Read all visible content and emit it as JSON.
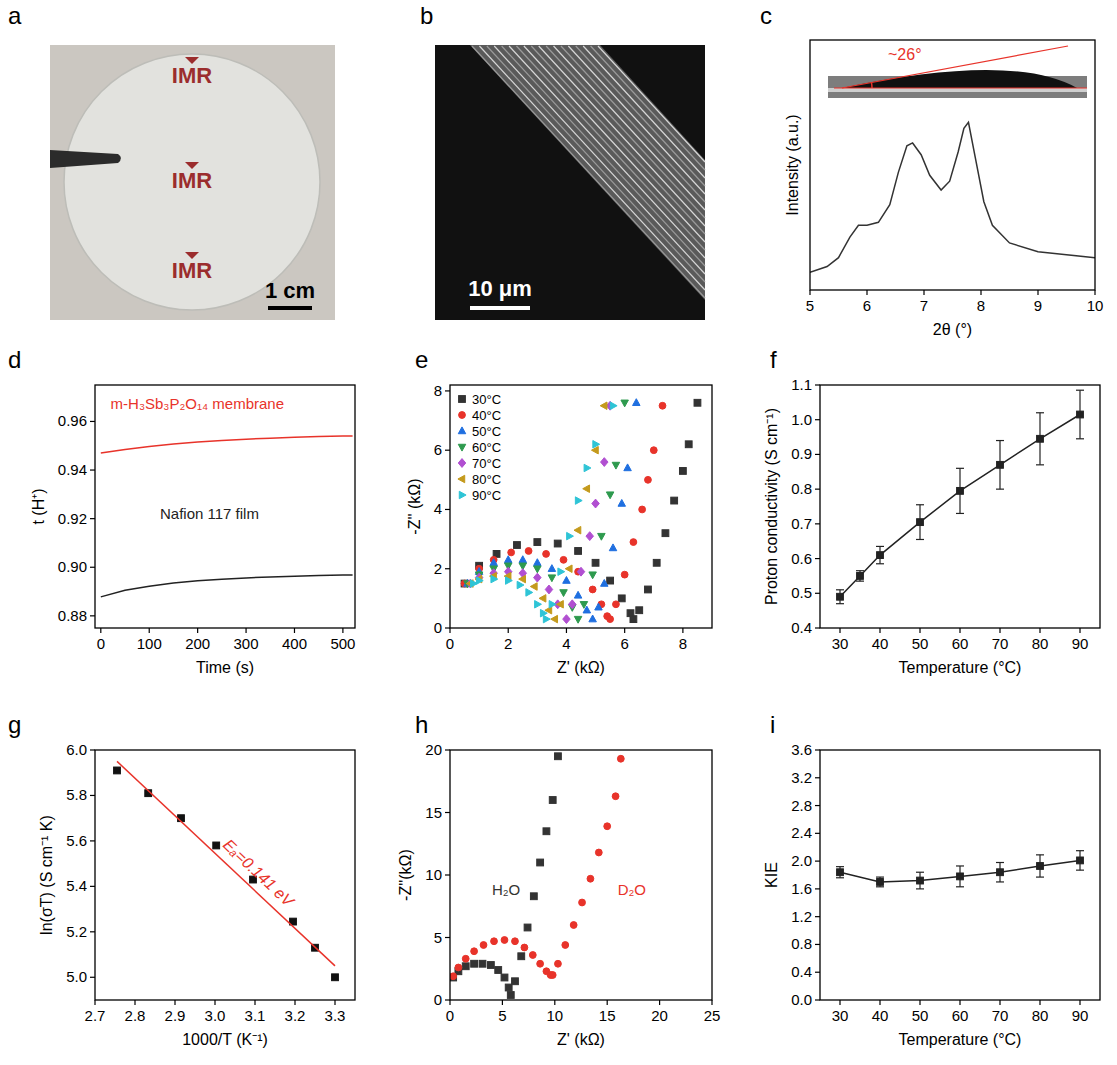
{
  "photos": [
    {
      "panel": "a",
      "labels": [
        "IMR",
        "IMR",
        "IMR"
      ],
      "scale_bar": "1 cm"
    },
    {
      "panel": "b",
      "scale_bar": "10 μm"
    }
  ],
  "chart_data": [
    {
      "panel": "c",
      "type": "line",
      "xlabel": "2θ (°)",
      "ylabel": "Intensity (a.u.)",
      "xlim": [
        5,
        10
      ],
      "xticks": [
        5,
        6,
        7,
        8,
        9,
        10
      ],
      "ylim": [
        0,
        0.85
      ],
      "tick_labels": "x",
      "annotations": [
        "~26°"
      ],
      "x": [
        5.0,
        5.3,
        5.5,
        5.7,
        5.85,
        6.0,
        6.2,
        6.4,
        6.55,
        6.7,
        6.8,
        6.95,
        7.1,
        7.3,
        7.45,
        7.6,
        7.7,
        7.78,
        7.9,
        8.05,
        8.2,
        8.5,
        9.0,
        9.5,
        10.0
      ],
      "series": [
        {
          "color": "#333333",
          "line_style": "solid",
          "values": [
            0.06,
            0.08,
            0.11,
            0.18,
            0.22,
            0.22,
            0.23,
            0.29,
            0.4,
            0.49,
            0.5,
            0.46,
            0.39,
            0.34,
            0.37,
            0.47,
            0.55,
            0.57,
            0.45,
            0.3,
            0.22,
            0.16,
            0.13,
            0.12,
            0.11
          ]
        }
      ]
    },
    {
      "panel": "d",
      "type": "line",
      "xlabel": "Time (s)",
      "ylabel": "t (H⁺)",
      "xlim": [
        -12,
        525
      ],
      "xticks": [
        0,
        100,
        200,
        300,
        400,
        500
      ],
      "ylim": [
        0.875,
        0.975
      ],
      "yticks": [
        0.88,
        {
          "value": 0.9,
          "label": "0.90"
        },
        0.92,
        0.94,
        0.96
      ],
      "x": [
        0,
        50,
        100,
        150,
        200,
        250,
        300,
        350,
        400,
        450,
        500,
        520
      ],
      "series": [
        {
          "name": "m-H₃Sb₃P₂O₁₄ membrane",
          "color": "#e8332a",
          "line_style": "solid",
          "values": [
            0.947,
            0.9485,
            0.9497,
            0.9507,
            0.9515,
            0.9522,
            0.9527,
            0.9531,
            0.9535,
            0.9538,
            0.954,
            0.954
          ]
        },
        {
          "name": "Nafion 117 film",
          "color": "#222222",
          "line_style": "solid",
          "values": [
            0.8878,
            0.8905,
            0.8922,
            0.8935,
            0.8944,
            0.8951,
            0.8956,
            0.896,
            0.8963,
            0.8966,
            0.8968,
            0.8968
          ]
        }
      ]
    },
    {
      "panel": "e",
      "type": "scatter",
      "xlabel": "Z' (kΩ)",
      "ylabel": "-Z'' (kΩ)",
      "xlim": [
        0,
        9
      ],
      "xticks": [
        0,
        2,
        4,
        6,
        8
      ],
      "ylim": [
        0,
        8.2
      ],
      "yticks": [
        0,
        2,
        4,
        6,
        8
      ],
      "legend": "upper left",
      "series": [
        {
          "name": "30°C",
          "color": "#333333",
          "marker": "square",
          "x": [
            0.5,
            1.0,
            1.6,
            2.3,
            3.0,
            3.7,
            4.4,
            5.0,
            5.5,
            5.9,
            6.2,
            6.3,
            6.5,
            6.8,
            7.1,
            7.4,
            7.7,
            8.0,
            8.2,
            8.5
          ],
          "values": [
            1.5,
            2.1,
            2.5,
            2.8,
            2.9,
            2.85,
            2.6,
            2.2,
            1.6,
            1.0,
            0.5,
            0.3,
            0.6,
            1.3,
            2.2,
            3.2,
            4.3,
            5.3,
            6.2,
            7.6
          ]
        },
        {
          "name": "40°C",
          "color": "#e8332a",
          "marker": "circle",
          "x": [
            0.5,
            1.0,
            1.5,
            2.1,
            2.7,
            3.3,
            3.9,
            4.4,
            4.9,
            5.2,
            5.4,
            5.5,
            5.7,
            6.0,
            6.3,
            6.6,
            6.8,
            7.0,
            7.3
          ],
          "values": [
            1.5,
            2.0,
            2.3,
            2.55,
            2.6,
            2.5,
            2.3,
            1.9,
            1.3,
            0.8,
            0.4,
            0.3,
            0.8,
            1.8,
            2.9,
            4.0,
            5.0,
            6.0,
            7.5
          ]
        },
        {
          "name": "50°C",
          "color": "#1f6fe0",
          "marker": "triangle-up",
          "x": [
            0.6,
            1.0,
            1.5,
            2.0,
            2.5,
            3.0,
            3.5,
            4.0,
            4.4,
            4.7,
            4.9,
            5.1,
            5.3,
            5.6,
            5.9,
            6.1,
            6.4
          ],
          "values": [
            1.5,
            1.9,
            2.2,
            2.3,
            2.3,
            2.2,
            2.0,
            1.6,
            1.1,
            0.6,
            0.3,
            0.7,
            1.5,
            2.7,
            4.2,
            5.4,
            7.6
          ]
        },
        {
          "name": "60°C",
          "color": "#2e9a4e",
          "marker": "triangle-down",
          "x": [
            0.6,
            1.0,
            1.5,
            2.0,
            2.5,
            3.0,
            3.5,
            3.9,
            4.2,
            4.4,
            4.6,
            4.9,
            5.2,
            5.5,
            5.7,
            6.0
          ],
          "values": [
            1.5,
            1.8,
            2.0,
            2.1,
            2.1,
            2.0,
            1.7,
            1.2,
            0.7,
            0.3,
            0.8,
            1.8,
            3.1,
            4.5,
            5.5,
            7.6
          ]
        },
        {
          "name": "70°C",
          "color": "#b14fd1",
          "marker": "diamond",
          "x": [
            0.7,
            1.0,
            1.5,
            2.0,
            2.5,
            3.0,
            3.4,
            3.7,
            4.0,
            4.2,
            4.5,
            4.8,
            5.0,
            5.3,
            5.5
          ],
          "values": [
            1.5,
            1.7,
            1.85,
            1.9,
            1.85,
            1.7,
            1.3,
            0.8,
            0.3,
            0.8,
            1.9,
            3.1,
            4.2,
            5.6,
            7.5
          ]
        },
        {
          "name": "80°C",
          "color": "#c49a1c",
          "marker": "triangle-left",
          "x": [
            0.7,
            1.0,
            1.5,
            2.0,
            2.5,
            2.9,
            3.2,
            3.4,
            3.6,
            3.8,
            4.1,
            4.4,
            4.7,
            5.0,
            5.3
          ],
          "values": [
            1.5,
            1.65,
            1.75,
            1.75,
            1.65,
            1.4,
            1.0,
            0.6,
            0.3,
            0.8,
            2.0,
            3.3,
            4.7,
            6.0,
            7.5
          ]
        },
        {
          "name": "90°C",
          "color": "#2ec4d6",
          "marker": "triangle-right",
          "x": [
            0.8,
            1.0,
            1.5,
            2.0,
            2.4,
            2.7,
            3.0,
            3.2,
            3.3,
            3.5,
            3.8,
            4.1,
            4.4,
            4.7,
            5.0,
            5.6
          ],
          "values": [
            1.5,
            1.6,
            1.65,
            1.6,
            1.45,
            1.2,
            0.8,
            0.5,
            0.3,
            0.8,
            1.9,
            3.1,
            4.3,
            5.4,
            6.2,
            7.5
          ]
        }
      ]
    },
    {
      "panel": "f",
      "type": "line",
      "xlabel": "Temperature (°C)",
      "ylabel": "Proton conductivity (S cm⁻¹)",
      "xlim": [
        25,
        95
      ],
      "xticks": [
        30,
        40,
        50,
        60,
        70,
        80,
        90
      ],
      "ylim": [
        0.4,
        1.1
      ],
      "yticks": [
        0.4,
        0.5,
        0.6,
        0.7,
        0.8,
        0.9,
        {
          "value": 1,
          "label": "1.0"
        },
        1.1
      ],
      "x": [
        30,
        35,
        40,
        50,
        60,
        70,
        80,
        90
      ],
      "series": [
        {
          "color": "#222222",
          "marker": "square",
          "line_style": "solid",
          "values": [
            0.49,
            0.55,
            0.61,
            0.705,
            0.795,
            0.87,
            0.945,
            1.015
          ],
          "errors": [
            0.02,
            0.015,
            0.025,
            0.05,
            0.065,
            0.07,
            0.075,
            0.07
          ]
        }
      ]
    },
    {
      "panel": "g",
      "type": "scatter",
      "xlabel": "1000/T (K⁻¹)",
      "ylabel": "ln(σT) (S cm⁻¹ K)",
      "xlim": [
        2.7,
        3.35
      ],
      "xticks": [
        2.7,
        2.8,
        2.9,
        {
          "value": 3,
          "label": "3.0"
        },
        3.1,
        3.2,
        3.3
      ],
      "ylim": [
        4.9,
        6.0
      ],
      "yticks": [
        {
          "value": 5,
          "label": "5.0"
        },
        5.2,
        5.4,
        5.6,
        5.8,
        {
          "value": 6,
          "label": "6.0"
        }
      ],
      "annotations": [
        "Eₐ=0.141 eV"
      ],
      "x": [
        3.3,
        3.25,
        3.195,
        3.095,
        3.003,
        2.915,
        2.833,
        2.755
      ],
      "series": [
        {
          "color": "#111111",
          "marker": "square",
          "values": [
            5.0,
            5.13,
            5.245,
            5.43,
            5.58,
            5.7,
            5.81,
            5.91
          ]
        },
        {
          "type": "line",
          "color": "#e8332a",
          "line_style": "solid",
          "x": [
            2.755,
            3.3
          ],
          "values": [
            5.95,
            5.05
          ]
        }
      ]
    },
    {
      "panel": "h",
      "type": "scatter",
      "xlabel": "Z' (kΩ)",
      "ylabel": "-Z''(kΩ)",
      "xlim": [
        0,
        25
      ],
      "xticks": [
        0,
        5,
        10,
        15,
        20,
        25
      ],
      "ylim": [
        0,
        20
      ],
      "yticks": [
        0,
        5,
        10,
        15,
        20
      ],
      "series": [
        {
          "name": "H₂O",
          "color": "#333333",
          "marker": "square",
          "x": [
            0.3,
            0.8,
            1.5,
            2.3,
            3.1,
            3.9,
            4.6,
            5.2,
            5.6,
            5.8,
            6.2,
            6.8,
            7.4,
            8.0,
            8.6,
            9.2,
            9.8,
            10.3
          ],
          "values": [
            1.8,
            2.3,
            2.7,
            2.9,
            2.9,
            2.8,
            2.4,
            1.8,
            1.0,
            0.4,
            1.5,
            3.5,
            5.8,
            8.3,
            11.0,
            13.5,
            16.0,
            19.5
          ]
        },
        {
          "name": "D₂O",
          "color": "#e8332a",
          "marker": "circle",
          "x": [
            0.3,
            0.8,
            1.5,
            2.3,
            3.2,
            4.2,
            5.2,
            6.2,
            7.1,
            7.9,
            8.6,
            9.2,
            9.6,
            9.8,
            10.3,
            11.0,
            11.8,
            12.6,
            13.4,
            14.2,
            15.0,
            15.8,
            16.3
          ],
          "values": [
            1.9,
            2.6,
            3.3,
            3.9,
            4.4,
            4.7,
            4.8,
            4.7,
            4.2,
            3.6,
            2.9,
            2.3,
            2.0,
            2.0,
            2.9,
            4.4,
            6.0,
            7.8,
            9.7,
            11.8,
            13.9,
            16.3,
            19.3
          ]
        }
      ]
    },
    {
      "panel": "i",
      "type": "line",
      "xlabel": "Temperature (°C)",
      "ylabel": "KIE",
      "xlim": [
        25,
        95
      ],
      "xticks": [
        30,
        40,
        50,
        60,
        70,
        80,
        90
      ],
      "ylim": [
        0,
        3.6
      ],
      "yticks": [
        {
          "value": 0,
          "label": "0.0"
        },
        0.4,
        0.8,
        1.2,
        1.6,
        {
          "value": 2,
          "label": "2.0"
        },
        2.4,
        2.8,
        3.2,
        3.6
      ],
      "x": [
        30,
        40,
        50,
        60,
        70,
        80,
        90
      ],
      "series": [
        {
          "color": "#222222",
          "marker": "square",
          "line_style": "solid",
          "values": [
            1.84,
            1.7,
            1.72,
            1.78,
            1.84,
            1.93,
            2.01
          ],
          "errors": [
            0.08,
            0.07,
            0.12,
            0.15,
            0.14,
            0.16,
            0.14
          ]
        }
      ]
    }
  ]
}
